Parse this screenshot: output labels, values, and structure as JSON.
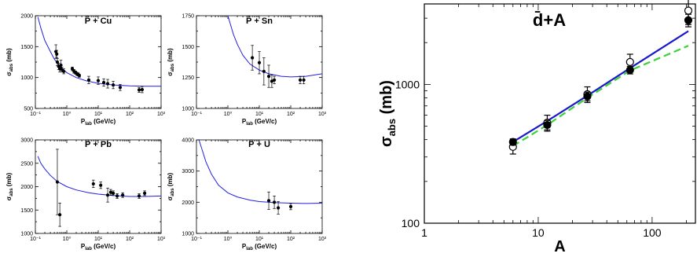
{
  "chart_data": [
    {
      "type": "scatter",
      "title": "P̄ + Cu",
      "ylabel": "σ_abs (mb)",
      "xlabel": "P_lab (GeV/c)",
      "xscale": "log",
      "xlim": [
        0.1,
        1000
      ],
      "ylim": [
        500,
        2000
      ],
      "yticks": [
        500,
        1000,
        1500,
        2000
      ],
      "yticklabels": [
        "500",
        "1000",
        "1500",
        "2000"
      ],
      "xticks": [
        0.1,
        1,
        10,
        100,
        1000
      ],
      "xticklabels": [
        "10⁻¹",
        "10⁰",
        "10¹",
        "10²",
        "10³"
      ],
      "series": [
        {
          "kind": "curve",
          "color": "#2020e0",
          "x": [
            0.12,
            0.15,
            0.2,
            0.3,
            0.4,
            0.6,
            1,
            2,
            4,
            10,
            30,
            100,
            300,
            1000
          ],
          "y": [
            1980,
            1800,
            1600,
            1420,
            1300,
            1180,
            1080,
            1000,
            950,
            905,
            880,
            865,
            860,
            860
          ]
        },
        {
          "kind": "points",
          "marker": "filled-circle",
          "x": [
            0.45,
            0.48,
            0.5,
            0.55,
            0.6,
            0.65,
            0.7,
            0.8,
            1.5,
            1.7,
            1.9,
            2.1,
            2.3,
            2.5,
            5,
            10,
            15,
            20,
            30,
            50
          ],
          "y": [
            1420,
            1380,
            1250,
            1180,
            1140,
            1200,
            1130,
            1100,
            1140,
            1100,
            1080,
            1060,
            1050,
            1030,
            960,
            950,
            920,
            900,
            880,
            840
          ],
          "yerr": [
            110,
            60,
            60,
            50,
            50,
            80,
            40,
            40,
            30,
            30,
            25,
            25,
            25,
            25,
            60,
            60,
            60,
            70,
            60,
            50
          ]
        },
        {
          "kind": "points",
          "marker": "filled-circle",
          "x": [
            200,
            250
          ],
          "y": [
            800,
            805
          ],
          "yerr": [
            40,
            50
          ]
        }
      ]
    },
    {
      "type": "scatter",
      "title": "P̄ + Sn",
      "ylabel": "σ_abs (mb)",
      "xlabel": "P_lab (GeV/c)",
      "xscale": "log",
      "xlim": [
        0.1,
        1000
      ],
      "ylim": [
        1000,
        1750
      ],
      "yticks": [
        1000,
        1250,
        1500,
        1750
      ],
      "yticklabels": [
        "1000",
        "1250",
        "1500",
        "1750"
      ],
      "xticks": [
        0.1,
        1,
        10,
        100,
        1000
      ],
      "xticklabels": [
        "10⁻¹",
        "10⁰",
        "10¹",
        "10²",
        "10³"
      ],
      "series": [
        {
          "kind": "curve",
          "color": "#2020e0",
          "x": [
            1.0,
            1.5,
            2,
            3,
            5,
            10,
            20,
            50,
            100,
            300,
            1000
          ],
          "y": [
            1750,
            1600,
            1520,
            1430,
            1360,
            1310,
            1280,
            1260,
            1255,
            1260,
            1280
          ]
        },
        {
          "kind": "points",
          "marker": "filled-circle",
          "x": [
            6,
            10,
            14,
            20,
            25,
            30,
            200,
            260
          ],
          "y": [
            1410,
            1370,
            1300,
            1260,
            1220,
            1230,
            1230,
            1230
          ],
          "yerr": [
            100,
            90,
            110,
            90,
            50,
            30,
            30,
            30
          ]
        }
      ]
    },
    {
      "type": "scatter",
      "title": "P̄ + Pb",
      "ylabel": "σ_abs (mb)",
      "xlabel": "P_lab (GeV/c)",
      "xscale": "log",
      "xlim": [
        0.1,
        1000
      ],
      "ylim": [
        1000,
        3000
      ],
      "yticks": [
        1000,
        1500,
        2000,
        2500,
        3000
      ],
      "yticklabels": [
        "1000",
        "1500",
        "2000",
        "2500",
        "3000"
      ],
      "xticks": [
        0.1,
        1,
        10,
        100,
        1000
      ],
      "xticklabels": [
        "10⁻¹",
        "10⁰",
        "10¹",
        "10²",
        "10³"
      ],
      "series": [
        {
          "kind": "curve",
          "color": "#2020e0",
          "x": [
            0.12,
            0.15,
            0.2,
            0.3,
            0.5,
            1,
            2,
            5,
            10,
            30,
            100,
            300,
            1000
          ],
          "y": [
            2650,
            2500,
            2380,
            2240,
            2110,
            2000,
            1930,
            1870,
            1840,
            1810,
            1790,
            1790,
            1800
          ]
        },
        {
          "kind": "points",
          "marker": "filled-circle",
          "x": [
            0.5,
            0.6,
            7,
            12,
            20,
            25,
            30,
            40,
            60,
            200,
            300
          ],
          "y": [
            2100,
            1400,
            2060,
            2030,
            1820,
            1880,
            1860,
            1800,
            1820,
            1800,
            1860
          ],
          "yerr": [
            700,
            250,
            80,
            70,
            150,
            60,
            50,
            50,
            50,
            50,
            50
          ]
        }
      ]
    },
    {
      "type": "scatter",
      "title": "P̄ + U",
      "ylabel": "σ_abs (mb)",
      "xlabel": "P_lab (GeV/c)",
      "xscale": "log",
      "xlim": [
        0.1,
        1000
      ],
      "ylim": [
        1000,
        4000
      ],
      "yticks": [
        1000,
        2000,
        3000,
        4000
      ],
      "yticklabels": [
        "1000",
        "2000",
        "3000",
        "4000"
      ],
      "xticks": [
        0.1,
        1,
        10,
        100,
        1000
      ],
      "xticklabels": [
        "10⁻¹",
        "10⁰",
        "10¹",
        "10²",
        "10³"
      ],
      "series": [
        {
          "kind": "curve",
          "color": "#2020e0",
          "x": [
            0.12,
            0.15,
            0.2,
            0.3,
            0.5,
            1,
            2,
            5,
            10,
            30,
            100,
            300,
            1000
          ],
          "y": [
            4000,
            3700,
            3300,
            2900,
            2550,
            2300,
            2170,
            2070,
            2020,
            1990,
            1970,
            1960,
            1970
          ]
        },
        {
          "kind": "points",
          "marker": "filled-circle",
          "x": [
            20,
            30,
            40,
            100
          ],
          "y": [
            2050,
            2000,
            1820,
            1860
          ],
          "yerr": [
            280,
            200,
            200,
            100
          ]
        }
      ]
    },
    {
      "type": "line",
      "title": "d̄+A",
      "ylabel": "σ_abs (mb)",
      "xlabel": "A",
      "xscale": "log",
      "yscale": "log",
      "xlim": [
        1,
        240
      ],
      "ylim": [
        100,
        3800
      ],
      "yticks": [
        100,
        1000
      ],
      "yticklabels": [
        "100",
        "1000"
      ],
      "xticks": [
        1,
        10,
        100
      ],
      "xticklabels": [
        "1",
        "10",
        "100"
      ],
      "series": [
        {
          "kind": "curve",
          "style": "solid",
          "color": "#1a1ac8",
          "x": [
            6,
            12,
            27,
            64,
            208
          ],
          "y": [
            385,
            545,
            830,
            1310,
            2420
          ]
        },
        {
          "kind": "curve",
          "style": "dashed",
          "color": "#3ad23a",
          "x": [
            6,
            12,
            27,
            64,
            208
          ],
          "y": [
            360,
            510,
            800,
            1260,
            1900
          ]
        },
        {
          "kind": "points",
          "marker": "open-circle",
          "x": [
            6,
            12,
            27,
            64,
            208
          ],
          "y": [
            355,
            530,
            850,
            1450,
            3400
          ],
          "yerr": [
            40,
            70,
            110,
            200,
            700
          ]
        },
        {
          "kind": "points",
          "marker": "filled-circle",
          "x": [
            6,
            12,
            27,
            64,
            208
          ],
          "y": [
            385,
            510,
            820,
            1270,
            2900
          ],
          "yerr": [
            20,
            40,
            60,
            80,
            300
          ]
        }
      ]
    }
  ]
}
